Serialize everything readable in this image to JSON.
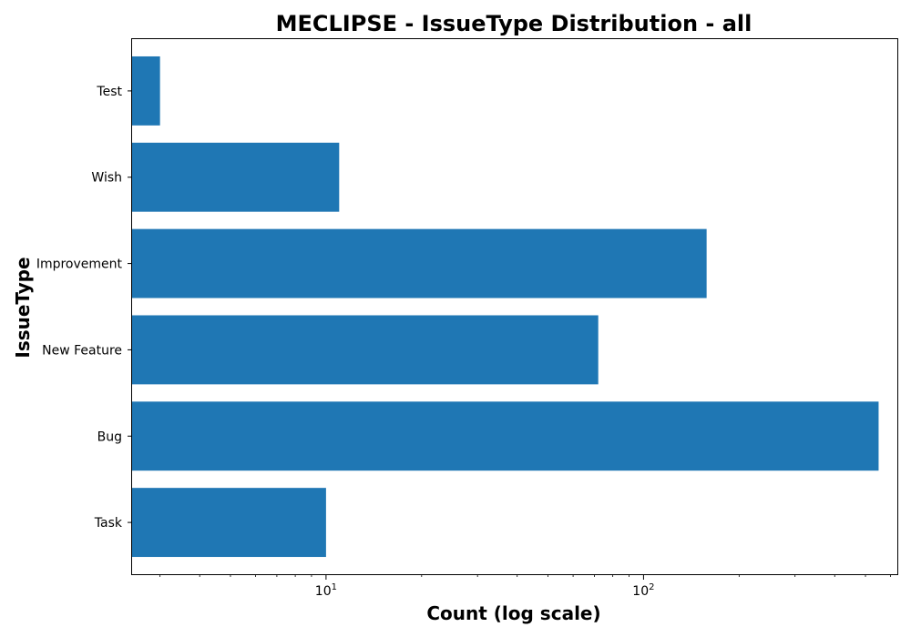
{
  "chart_data": {
    "type": "bar",
    "orientation": "horizontal",
    "title": "MECLIPSE - IssueType Distribution - all",
    "xlabel": "Count (log scale)",
    "ylabel": "IssueType",
    "x_scale": "log",
    "xlim": [
      2.45,
      630
    ],
    "x_ticks": [
      {
        "value": 10,
        "base": "10",
        "exp": "1"
      },
      {
        "value": 100,
        "base": "10",
        "exp": "2"
      }
    ],
    "categories": [
      "Task",
      "Bug",
      "New Feature",
      "Improvement",
      "Wish",
      "Test"
    ],
    "values": [
      10,
      550,
      72,
      158,
      11,
      3
    ],
    "bar_color": "#1f77b4",
    "grid": false
  }
}
